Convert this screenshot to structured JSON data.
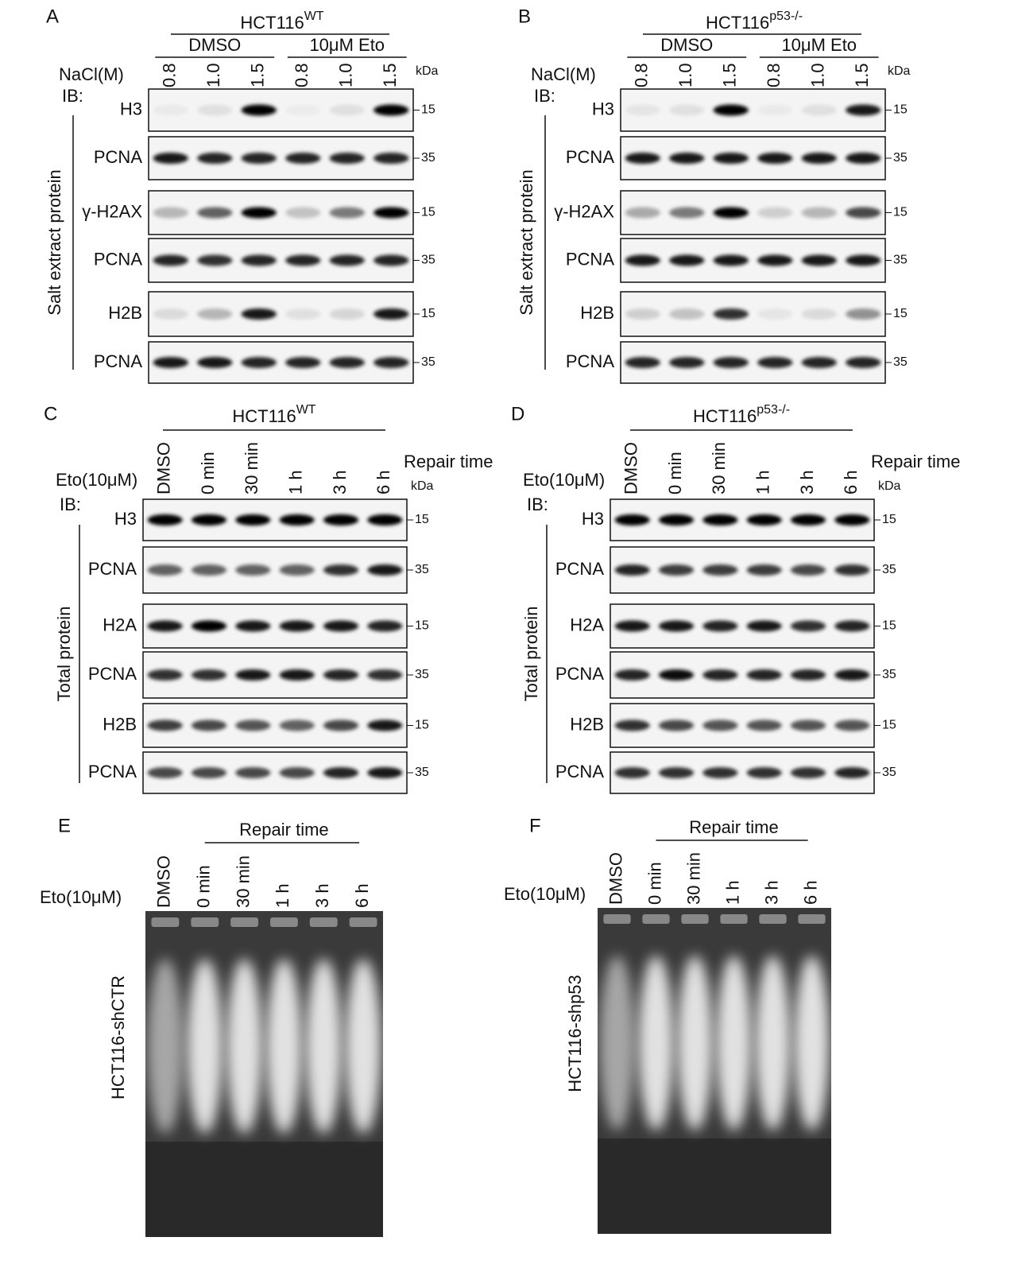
{
  "panels": [
    {
      "letter": "A",
      "cell_line": "HCT116",
      "superscript": "WT",
      "groups": [
        "DMSO",
        "10μM Eto"
      ],
      "lane_header": "NaCl(M)",
      "lanes": [
        "0.8",
        "1.0",
        "1.5",
        "0.8",
        "1.0",
        "1.5"
      ],
      "kda_label": "kDa",
      "ib_label": "IB:",
      "side_label": "Salt extract protein",
      "blots": [
        {
          "label": "H3",
          "kda": "15"
        },
        {
          "label": "PCNA",
          "kda": "35"
        },
        {
          "label": "γ-H2AX",
          "kda": "15"
        },
        {
          "label": "PCNA",
          "kda": "35"
        },
        {
          "label": "H2B",
          "kda": "15"
        },
        {
          "label": "PCNA",
          "kda": "35"
        }
      ]
    },
    {
      "letter": "B",
      "cell_line": "HCT116",
      "superscript": "p53-/-",
      "groups": [
        "DMSO",
        "10μM Eto"
      ],
      "lane_header": "NaCl(M)",
      "lanes": [
        "0.8",
        "1.0",
        "1.5",
        "0.8",
        "1.0",
        "1.5"
      ],
      "kda_label": "kDa",
      "ib_label": "IB:",
      "side_label": "Salt extract protein",
      "blots": [
        {
          "label": "H3",
          "kda": "15"
        },
        {
          "label": "PCNA",
          "kda": "35"
        },
        {
          "label": "γ-H2AX",
          "kda": "15"
        },
        {
          "label": "PCNA",
          "kda": "35"
        },
        {
          "label": "H2B",
          "kda": "15"
        },
        {
          "label": "PCNA",
          "kda": "35"
        }
      ]
    },
    {
      "letter": "C",
      "cell_line": "HCT116",
      "superscript": "WT",
      "lane_header": "Eto(10μM)",
      "lanes": [
        "DMSO",
        "0 min",
        "30 min",
        "1 h",
        "3 h",
        "6 h"
      ],
      "repair_label": "Repair time",
      "kda_label": "kDa",
      "ib_label": "IB:",
      "side_label": "Total protein",
      "blots": [
        {
          "label": "H3",
          "kda": "15"
        },
        {
          "label": "PCNA",
          "kda": "35"
        },
        {
          "label": "H2A",
          "kda": "15"
        },
        {
          "label": "PCNA",
          "kda": "35"
        },
        {
          "label": "H2B",
          "kda": "15"
        },
        {
          "label": "PCNA",
          "kda": "35"
        }
      ]
    },
    {
      "letter": "D",
      "cell_line": "HCT116",
      "superscript": "p53-/-",
      "lane_header": "Eto(10μM)",
      "lanes": [
        "DMSO",
        "0 min",
        "30 min",
        "1 h",
        "3 h",
        "6 h"
      ],
      "repair_label": "Repair time",
      "kda_label": "kDa",
      "ib_label": "IB:",
      "side_label": "Total protein",
      "blots": [
        {
          "label": "H3",
          "kda": "15"
        },
        {
          "label": "PCNA",
          "kda": "35"
        },
        {
          "label": "H2A",
          "kda": "15"
        },
        {
          "label": "PCNA",
          "kda": "35"
        },
        {
          "label": "H2B",
          "kda": "15"
        },
        {
          "label": "PCNA",
          "kda": "35"
        }
      ]
    },
    {
      "letter": "E",
      "repair_label": "Repair time",
      "lane_header": "Eto(10μM)",
      "lanes": [
        "DMSO",
        "0 min",
        "30 min",
        "1 h",
        "3 h",
        "6 h"
      ],
      "side_label": "HCT116-shCTR"
    },
    {
      "letter": "F",
      "repair_label": "Repair time",
      "lane_header": "Eto(10μM)",
      "lanes": [
        "DMSO",
        "0 min",
        "30 min",
        "1 h",
        "3 h",
        "6 h"
      ],
      "side_label": "HCT116-shp53"
    }
  ]
}
